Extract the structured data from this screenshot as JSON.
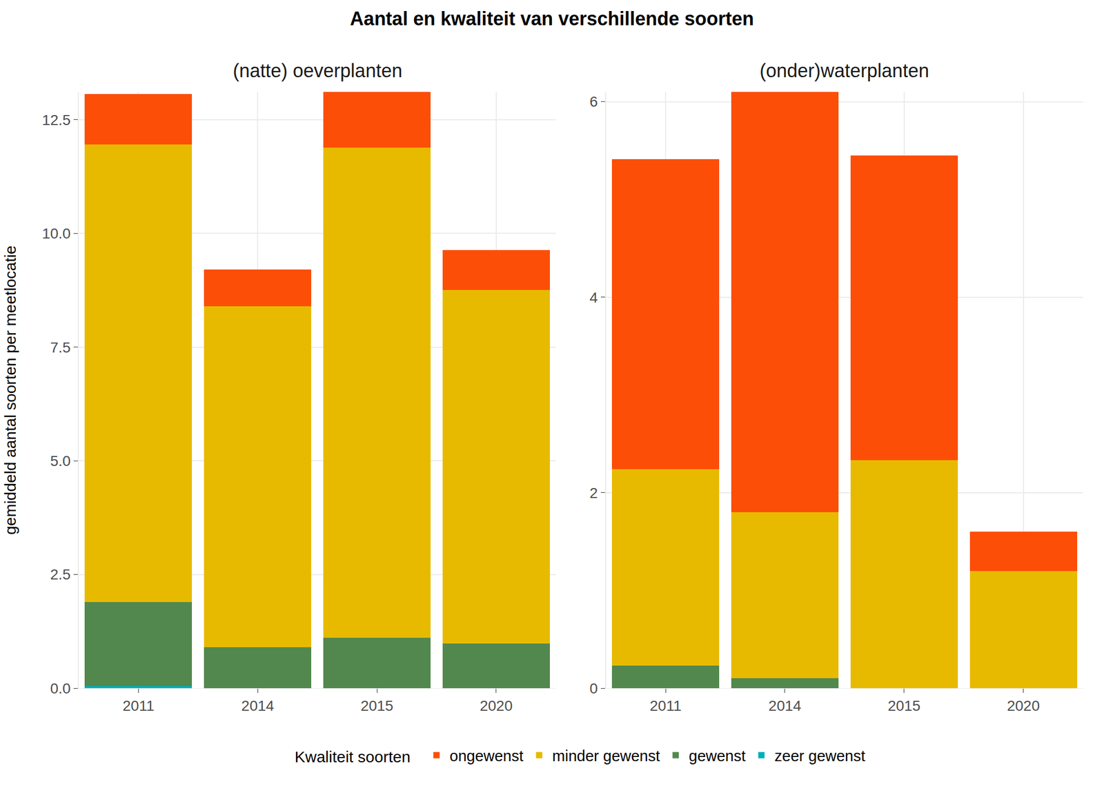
{
  "title": "Aantal en kwaliteit van verschillende soorten",
  "legend_title": "Kwaliteit soorten",
  "chart_data": [
    {
      "type": "bar",
      "title": "(natte) oeverplanten",
      "y_label": "gemiddeld aantal soorten per meetlocatie",
      "stacked": true,
      "grid": true,
      "legend": "bottom",
      "categories": [
        "2011",
        "2014",
        "2015",
        "2020"
      ],
      "ylim": [
        0,
        13.11
      ],
      "yticks": [
        {
          "value": 0,
          "label": "0.0"
        },
        2.5,
        {
          "value": 5,
          "label": "5.0"
        },
        7.5,
        {
          "value": 10,
          "label": "10.0"
        },
        12.5
      ],
      "series": [
        {
          "name": "zeer gewenst",
          "color": "#00AFBB",
          "values": [
            0.05,
            0,
            0,
            0
          ]
        },
        {
          "name": "gewenst",
          "color": "#52884D",
          "values": [
            1.84,
            0.9,
            1.11,
            0.98
          ]
        },
        {
          "name": "minder gewenst",
          "color": "#E7BA00",
          "values": [
            10.06,
            7.5,
            10.78,
            7.78
          ]
        },
        {
          "name": "ongewenst",
          "color": "#FC4E07",
          "values": [
            1.11,
            0.81,
            1.22,
            0.87
          ]
        }
      ]
    },
    {
      "type": "bar",
      "title": "(onder)waterplanten",
      "stacked": true,
      "grid": true,
      "categories": [
        "2011",
        "2014",
        "2015",
        "2020"
      ],
      "ylim": [
        0,
        6.1
      ],
      "yticks": [
        0,
        2,
        4,
        6
      ],
      "series": [
        {
          "name": "gewenst",
          "color": "#52884D",
          "values": [
            0.23,
            0.1,
            0,
            0
          ]
        },
        {
          "name": "minder gewenst",
          "color": "#E7BA00",
          "values": [
            2.01,
            1.7,
            2.33,
            1.2
          ]
        },
        {
          "name": "ongewenst",
          "color": "#FC4E07",
          "values": [
            3.17,
            4.3,
            3.12,
            0.4
          ]
        }
      ]
    }
  ]
}
